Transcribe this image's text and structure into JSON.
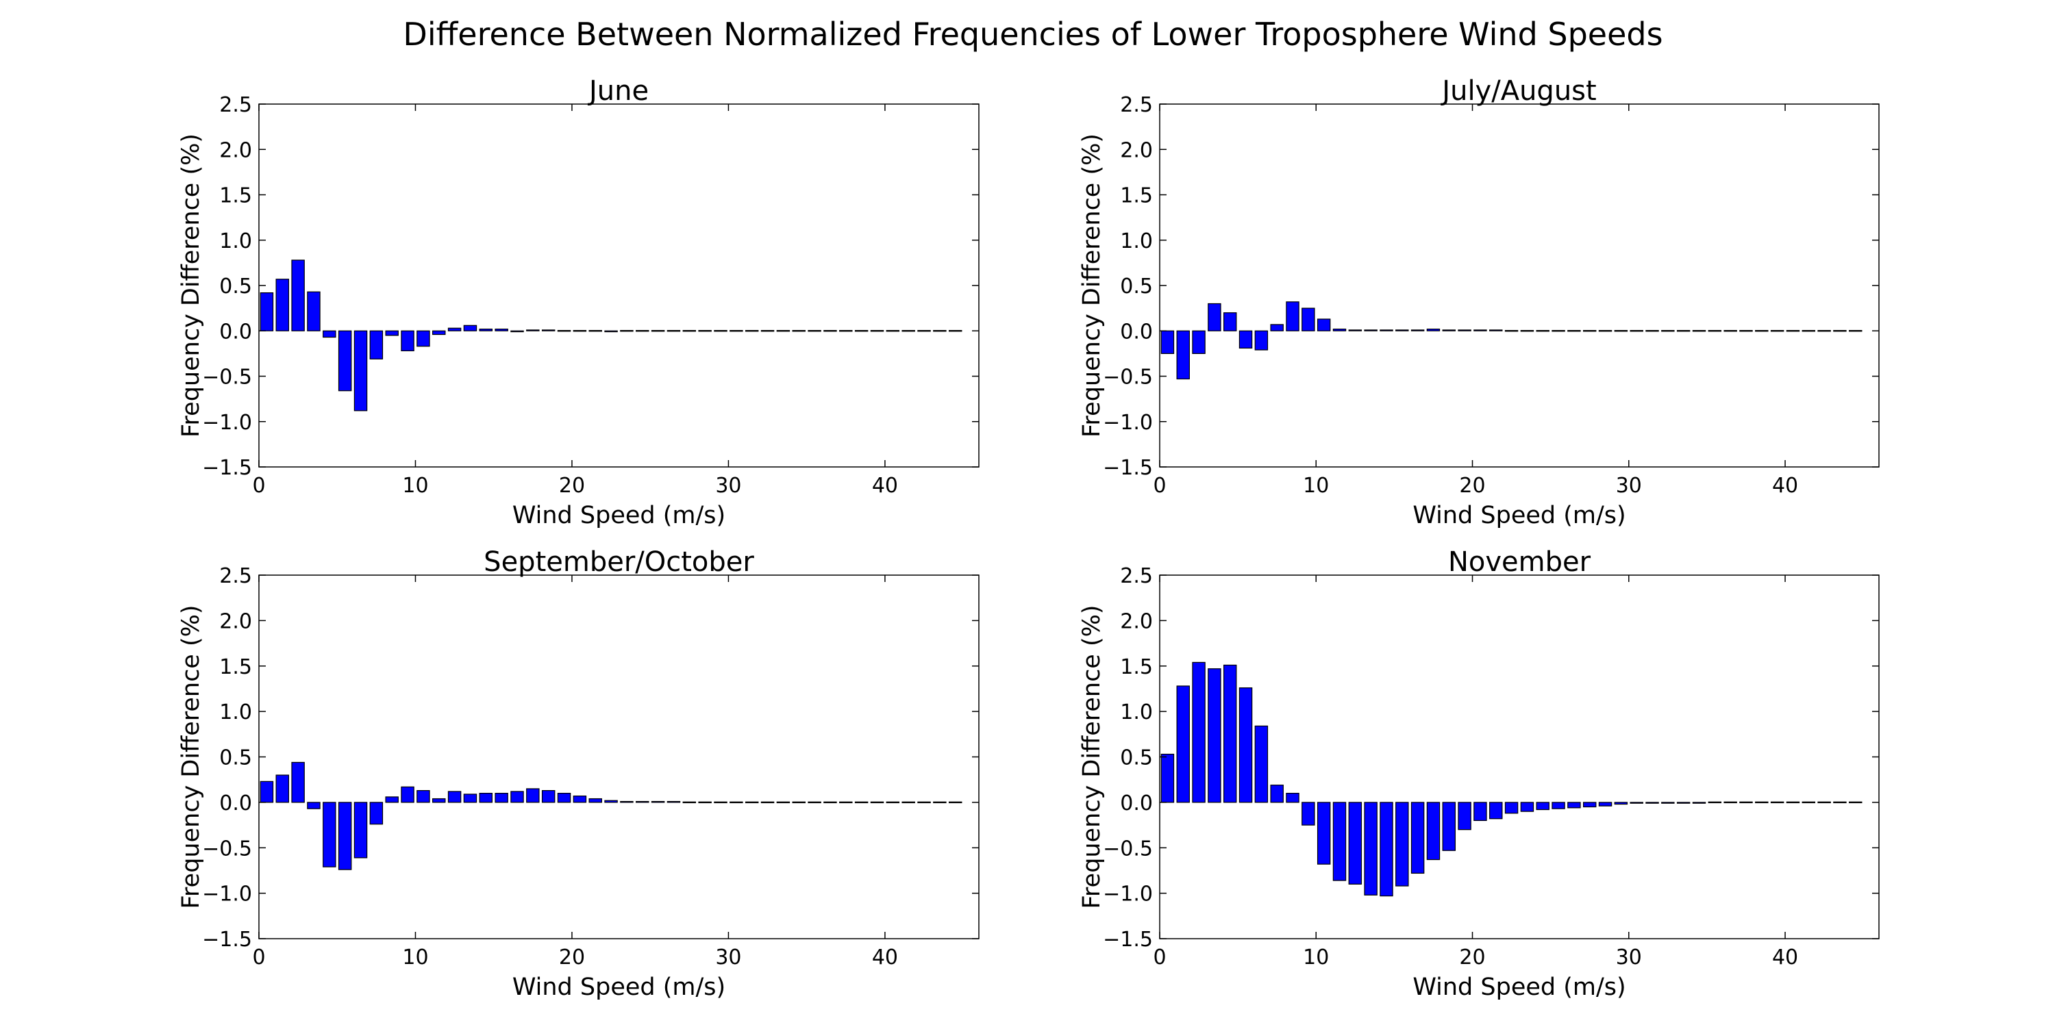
{
  "figure": {
    "title": "Difference Between Normalized Frequencies of Lower Troposphere Wind Speeds"
  },
  "colors": {
    "bar_fill": "#0000ff",
    "bar_edge": "#000000",
    "axes": "#000000",
    "background": "#ffffff"
  },
  "chart_data": [
    {
      "type": "bar",
      "title": "June",
      "xlabel": "Wind Speed (m/s)",
      "ylabel": "Frequency Difference (%)",
      "xlim": [
        0,
        46
      ],
      "ylim": [
        -1.5,
        2.5
      ],
      "xticks": [
        "0",
        "10",
        "20",
        "30",
        "40"
      ],
      "yticks": [
        "−1.5",
        "−1.0",
        "−0.5",
        "0.0",
        "0.5",
        "1.0",
        "1.5",
        "2.0",
        "2.5"
      ],
      "grid": false,
      "bin_width": 1,
      "x": [
        0,
        1,
        2,
        3,
        4,
        5,
        6,
        7,
        8,
        9,
        10,
        11,
        12,
        13,
        14,
        15,
        16,
        17,
        18,
        19,
        20,
        21,
        22,
        23,
        24,
        25,
        26,
        27,
        28,
        29,
        30,
        31,
        32,
        33,
        34,
        35,
        36,
        37,
        38,
        39,
        40,
        41,
        42,
        43,
        44
      ],
      "values": [
        0.42,
        0.57,
        0.78,
        0.43,
        -0.07,
        -0.66,
        -0.88,
        -0.31,
        -0.05,
        -0.22,
        -0.17,
        -0.04,
        0.03,
        0.06,
        0.02,
        0.02,
        -0.01,
        0.01,
        0.01,
        0.0,
        0.0,
        0.0,
        -0.01,
        0.0,
        0.0,
        0.0,
        0.0,
        0.0,
        0.0,
        0.0,
        0.0,
        0.0,
        0.0,
        0.0,
        0.0,
        0.0,
        0.0,
        0.0,
        0.0,
        0.0,
        0.0,
        0.0,
        0.0,
        0.0,
        0.0
      ]
    },
    {
      "type": "bar",
      "title": "July/August",
      "xlabel": "Wind Speed (m/s)",
      "ylabel": "Frequency Difference (%)",
      "xlim": [
        0,
        46
      ],
      "ylim": [
        -1.5,
        2.5
      ],
      "xticks": [
        "0",
        "10",
        "20",
        "30",
        "40"
      ],
      "yticks": [
        "−1.5",
        "−1.0",
        "−0.5",
        "0.0",
        "0.5",
        "1.0",
        "1.5",
        "2.0",
        "2.5"
      ],
      "grid": false,
      "bin_width": 1,
      "x": [
        0,
        1,
        2,
        3,
        4,
        5,
        6,
        7,
        8,
        9,
        10,
        11,
        12,
        13,
        14,
        15,
        16,
        17,
        18,
        19,
        20,
        21,
        22,
        23,
        24,
        25,
        26,
        27,
        28,
        29,
        30,
        31,
        32,
        33,
        34,
        35,
        36,
        37,
        38,
        39,
        40,
        41,
        42,
        43,
        44
      ],
      "values": [
        -0.25,
        -0.53,
        -0.25,
        0.3,
        0.2,
        -0.19,
        -0.21,
        0.07,
        0.32,
        0.25,
        0.13,
        0.02,
        0.01,
        0.01,
        0.01,
        0.01,
        0.01,
        0.02,
        0.01,
        0.01,
        0.01,
        0.01,
        0.0,
        0.0,
        0.0,
        0.0,
        0.0,
        0.0,
        0.0,
        0.0,
        0.0,
        0.0,
        0.0,
        0.0,
        0.0,
        0.0,
        0.0,
        0.0,
        0.0,
        0.0,
        0.0,
        0.0,
        0.0,
        0.0,
        0.0
      ]
    },
    {
      "type": "bar",
      "title": "September/October",
      "xlabel": "Wind Speed (m/s)",
      "ylabel": "Frequency Difference (%)",
      "xlim": [
        0,
        46
      ],
      "ylim": [
        -1.5,
        2.5
      ],
      "xticks": [
        "0",
        "10",
        "20",
        "30",
        "40"
      ],
      "yticks": [
        "−1.5",
        "−1.0",
        "−0.5",
        "0.0",
        "0.5",
        "1.0",
        "1.5",
        "2.0",
        "2.5"
      ],
      "grid": false,
      "bin_width": 1,
      "x": [
        0,
        1,
        2,
        3,
        4,
        5,
        6,
        7,
        8,
        9,
        10,
        11,
        12,
        13,
        14,
        15,
        16,
        17,
        18,
        19,
        20,
        21,
        22,
        23,
        24,
        25,
        26,
        27,
        28,
        29,
        30,
        31,
        32,
        33,
        34,
        35,
        36,
        37,
        38,
        39,
        40,
        41,
        42,
        43,
        44
      ],
      "values": [
        0.23,
        0.3,
        0.44,
        -0.07,
        -0.71,
        -0.74,
        -0.61,
        -0.24,
        0.06,
        0.17,
        0.13,
        0.04,
        0.12,
        0.09,
        0.1,
        0.1,
        0.12,
        0.15,
        0.13,
        0.1,
        0.07,
        0.04,
        0.02,
        0.01,
        0.01,
        0.01,
        0.01,
        0.0,
        0.0,
        0.0,
        0.0,
        0.0,
        0.0,
        0.0,
        0.0,
        0.0,
        0.0,
        0.0,
        0.0,
        0.0,
        0.0,
        0.0,
        0.0,
        0.0,
        0.0
      ]
    },
    {
      "type": "bar",
      "title": "November",
      "xlabel": "Wind Speed (m/s)",
      "ylabel": "Frequency Difference (%)",
      "xlim": [
        0,
        46
      ],
      "ylim": [
        -1.5,
        2.5
      ],
      "xticks": [
        "0",
        "10",
        "20",
        "30",
        "40"
      ],
      "yticks": [
        "−1.5",
        "−1.0",
        "−0.5",
        "0.0",
        "0.5",
        "1.0",
        "1.5",
        "2.0",
        "2.5"
      ],
      "grid": false,
      "bin_width": 1,
      "x": [
        0,
        1,
        2,
        3,
        4,
        5,
        6,
        7,
        8,
        9,
        10,
        11,
        12,
        13,
        14,
        15,
        16,
        17,
        18,
        19,
        20,
        21,
        22,
        23,
        24,
        25,
        26,
        27,
        28,
        29,
        30,
        31,
        32,
        33,
        34,
        35,
        36,
        37,
        38,
        39,
        40,
        41,
        42,
        43,
        44
      ],
      "values": [
        0.53,
        1.28,
        1.54,
        1.47,
        1.51,
        1.26,
        0.84,
        0.19,
        0.1,
        -0.25,
        -0.68,
        -0.86,
        -0.9,
        -1.02,
        -1.03,
        -0.92,
        -0.78,
        -0.63,
        -0.53,
        -0.3,
        -0.2,
        -0.18,
        -0.12,
        -0.1,
        -0.08,
        -0.07,
        -0.06,
        -0.05,
        -0.04,
        -0.02,
        -0.01,
        -0.01,
        -0.01,
        -0.01,
        -0.01,
        0.0,
        0.0,
        0.0,
        0.0,
        0.0,
        0.0,
        0.0,
        0.0,
        0.0,
        0.0
      ]
    }
  ]
}
